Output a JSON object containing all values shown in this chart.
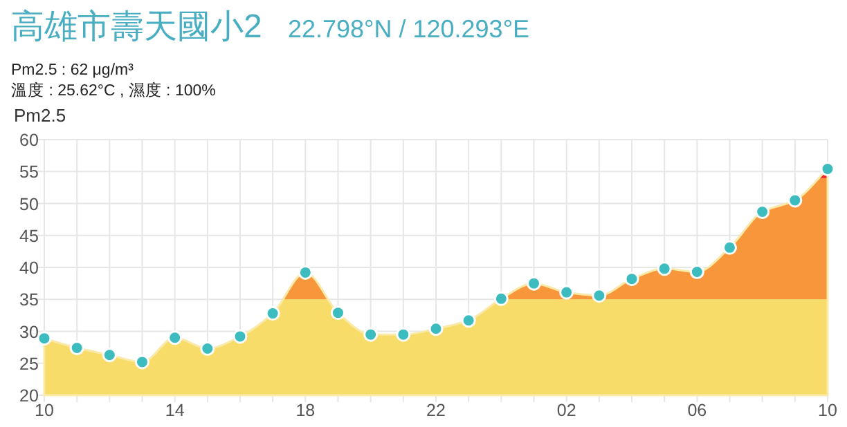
{
  "chart_data": {
    "type": "area",
    "title": "高雄市壽天國小2",
    "subtitle": "22.798°N / 120.293°E",
    "annotations": [
      "Pm2.5 : 62 μg/m³",
      "溫度 : 25.62°C , 濕度 : 100%"
    ],
    "ylabel": "Pm2.5",
    "categories": [
      "10",
      null,
      null,
      null,
      "14",
      null,
      null,
      null,
      "18",
      null,
      null,
      null,
      "22",
      null,
      null,
      null,
      "02",
      null,
      null,
      null,
      "06",
      null,
      null,
      null,
      "10"
    ],
    "series": [
      {
        "color": "#3cbcbf",
        "values": [
          28.9,
          27.4,
          26.3,
          25.2,
          29,
          27.3,
          29.2,
          32.8,
          39.2,
          32.9,
          29.5,
          29.5,
          30.4,
          31.7,
          35.1,
          37.5,
          36.1,
          35.6,
          38.2,
          39.8,
          39.3,
          43.1,
          48.7,
          50.5,
          55.4
        ]
      }
    ],
    "bands": [
      {
        "axis": "y",
        "from": 20,
        "to": 35,
        "color": "#f7dc6a"
      },
      {
        "axis": "y",
        "from": 35,
        "to": 54,
        "color": "#f7963a"
      },
      {
        "axis": "y",
        "from": 54,
        "to": 60,
        "color": "#e8262c"
      }
    ],
    "ylim": [
      20,
      60
    ],
    "yticks": [
      20,
      25,
      30,
      35,
      40,
      45,
      50,
      55,
      60
    ],
    "grid": true,
    "marker": "circle"
  }
}
